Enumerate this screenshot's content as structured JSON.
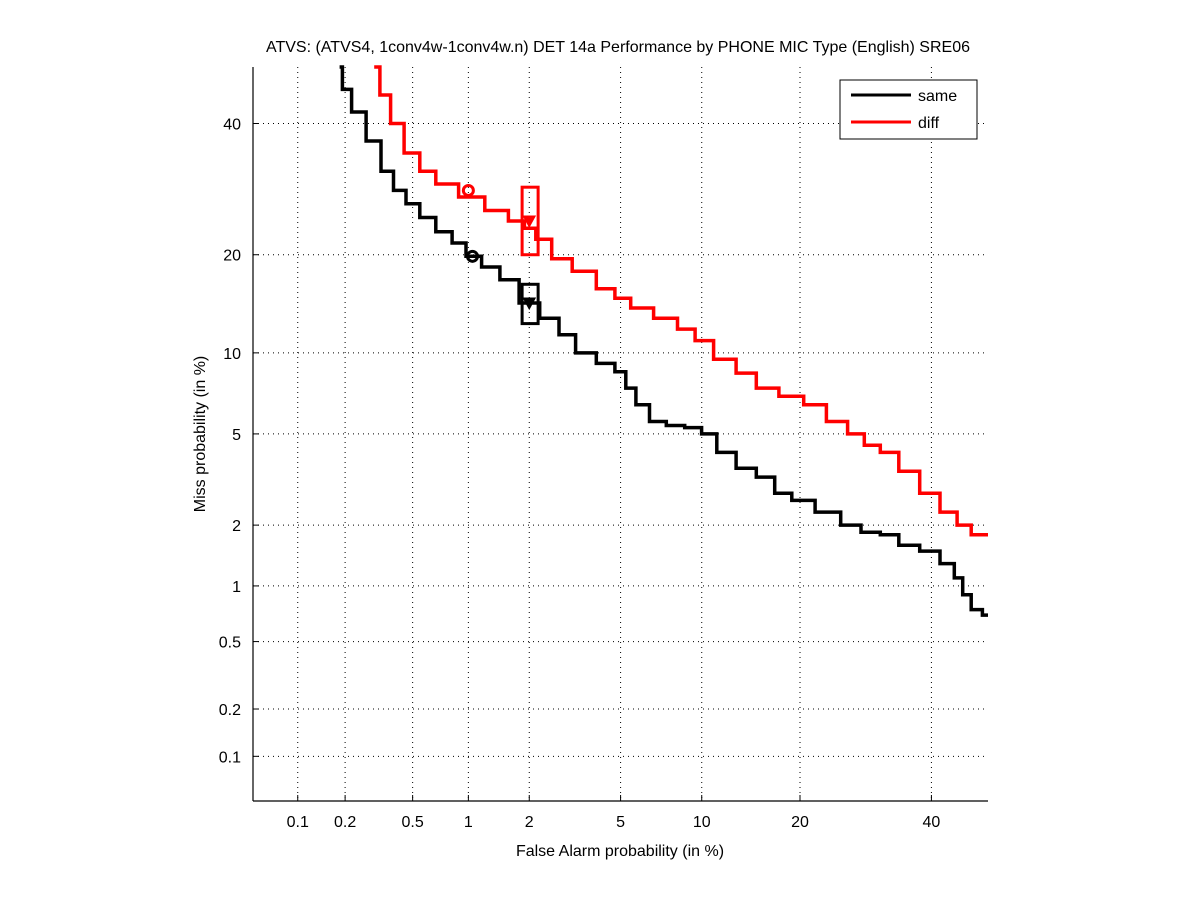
{
  "chart_data": {
    "type": "line",
    "title": "ATVS: (ATVS4, 1conv4w-1conv4w.n) DET 14a Performance by PHONE MIC Type (English) SRE06",
    "xlabel": "False Alarm probability (in %)",
    "ylabel": "Miss probability (in %)",
    "scale": "probit",
    "xlim": [
      0.05,
      50
    ],
    "ylim": [
      0.05,
      50
    ],
    "xticks": [
      0.1,
      0.2,
      0.5,
      1,
      2,
      5,
      10,
      20,
      40
    ],
    "xtick_labels": [
      "0.1",
      "0.2",
      "0.5",
      "1",
      "2",
      "5",
      "10",
      "20",
      "40"
    ],
    "yticks": [
      0.1,
      0.2,
      0.5,
      1,
      2,
      5,
      10,
      20,
      40
    ],
    "ytick_labels": [
      "0.1",
      "0.2",
      "0.5",
      "1",
      "2",
      "5",
      "10",
      "20",
      "40"
    ],
    "grid": true,
    "legend_position": "top-right",
    "series": [
      {
        "name": "same",
        "color": "#000000",
        "points": [
          [
            0.185,
            50
          ],
          [
            0.2,
            46
          ],
          [
            0.24,
            42
          ],
          [
            0.3,
            37
          ],
          [
            0.36,
            32
          ],
          [
            0.42,
            29
          ],
          [
            0.5,
            27
          ],
          [
            0.6,
            25
          ],
          [
            0.75,
            23
          ],
          [
            0.9,
            21.5
          ],
          [
            1.05,
            19.8
          ],
          [
            1.3,
            18.5
          ],
          [
            1.6,
            17
          ],
          [
            2,
            14.5
          ],
          [
            2.5,
            13
          ],
          [
            3,
            11.5
          ],
          [
            3.5,
            10
          ],
          [
            4.5,
            9.2
          ],
          [
            5,
            8.6
          ],
          [
            5.5,
            7.5
          ],
          [
            6,
            6.5
          ],
          [
            7,
            5.6
          ],
          [
            8,
            5.4
          ],
          [
            9.5,
            5.3
          ],
          [
            10.5,
            5
          ],
          [
            12,
            4.2
          ],
          [
            14,
            3.6
          ],
          [
            16,
            3.3
          ],
          [
            18,
            2.8
          ],
          [
            20,
            2.6
          ],
          [
            24,
            2.3
          ],
          [
            27,
            2
          ],
          [
            30,
            1.85
          ],
          [
            33,
            1.8
          ],
          [
            36,
            1.6
          ],
          [
            40,
            1.5
          ],
          [
            43,
            1.3
          ],
          [
            45,
            1.1
          ],
          [
            46,
            0.9
          ],
          [
            48,
            0.75
          ],
          [
            50,
            0.7
          ]
        ],
        "min_dcf_point": [
          1.05,
          19.8
        ],
        "act_dcf_point": [
          2,
          14.5
        ],
        "act_dcf_box": {
          "fa": [
            1.85,
            2.2
          ],
          "miss": [
            12.5,
            16.5
          ]
        }
      },
      {
        "name": "diff",
        "color": "#ff0000",
        "points": [
          [
            0.3,
            50
          ],
          [
            0.35,
            45
          ],
          [
            0.4,
            40
          ],
          [
            0.5,
            35
          ],
          [
            0.6,
            32
          ],
          [
            0.75,
            30
          ],
          [
            1.05,
            28
          ],
          [
            1.4,
            26
          ],
          [
            1.8,
            24.5
          ],
          [
            2,
            23.5
          ],
          [
            2.3,
            22
          ],
          [
            2.8,
            19.5
          ],
          [
            3.5,
            18
          ],
          [
            4.5,
            16
          ],
          [
            5,
            15
          ],
          [
            6,
            14
          ],
          [
            7.5,
            13
          ],
          [
            9,
            12
          ],
          [
            10,
            11
          ],
          [
            12,
            9.5
          ],
          [
            14,
            8.5
          ],
          [
            16,
            7.5
          ],
          [
            19,
            7
          ],
          [
            22,
            6.5
          ],
          [
            25,
            5.6
          ],
          [
            28,
            5
          ],
          [
            30,
            4.5
          ],
          [
            33,
            4.2
          ],
          [
            36,
            3.5
          ],
          [
            40,
            2.8
          ],
          [
            43,
            2.3
          ],
          [
            46,
            2
          ],
          [
            48,
            1.8
          ],
          [
            50,
            1.8
          ]
        ],
        "min_dcf_point": [
          1.0,
          29
        ],
        "act_dcf_point": [
          2,
          24.5
        ],
        "act_dcf_box": {
          "fa": [
            1.85,
            2.2
          ],
          "miss": [
            20,
            29.5
          ]
        }
      }
    ]
  }
}
